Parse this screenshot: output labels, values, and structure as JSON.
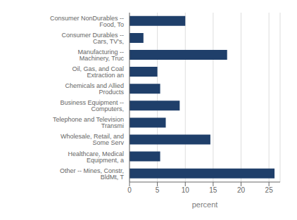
{
  "chart_data": {
    "type": "bar",
    "orientation": "horizontal",
    "categories": [
      "Consumer NonDurables -- Food, To",
      "Consumer Durables -- Cars, TV's,",
      "Manufacturing -- Machinery, Truc",
      "Oil, Gas, and Coal Extraction an",
      "Chemicals and Allied Products",
      "Business Equipment -- Computers,",
      "Telephone and Television Transmi",
      "Wholesale, Retail, and Some Serv",
      "Healthcare, Medical Equipment, a",
      "Other -- Mines, Constr, BldMt, T"
    ],
    "values": [
      10.0,
      2.5,
      17.5,
      5.0,
      5.5,
      9.0,
      6.5,
      14.5,
      5.5,
      26.0
    ],
    "color": "#1F3F6A",
    "xlabel": "percent",
    "xlim": [
      0,
      27
    ],
    "xticks": [
      0,
      5,
      10,
      15,
      20,
      25
    ],
    "grid": true
  }
}
